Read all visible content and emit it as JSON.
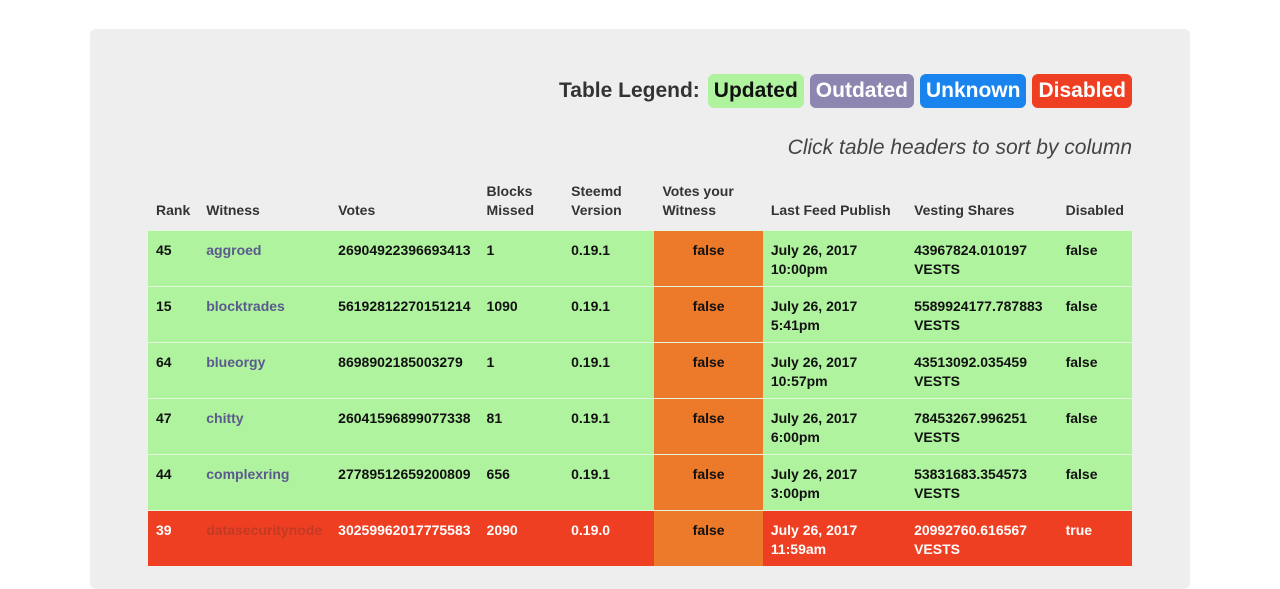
{
  "legend": {
    "title": "Table Legend:",
    "updated": "Updated",
    "outdated": "Outdated",
    "unknown": "Unknown",
    "disabled": "Disabled"
  },
  "hint": "Click table headers to sort by column",
  "headers": {
    "rank": "Rank",
    "witness": "Witness",
    "votes": "Votes",
    "blocks_missed_1": "Blocks",
    "blocks_missed_2": "Missed",
    "steemd_1": "Steemd",
    "steemd_2": "Version",
    "votes_witness_1": "Votes your",
    "votes_witness_2": "Witness",
    "last_feed": "Last Feed Publish",
    "vesting": "Vesting Shares",
    "disabled": "Disabled"
  },
  "rows": [
    {
      "status": "updated",
      "rank": "45",
      "witness": "aggroed",
      "votes": "26904922396693413",
      "missed": "1",
      "version": "0.19.1",
      "vote": "false",
      "feed_1": "July 26, 2017",
      "feed_2": "10:00pm",
      "vest_1": "43967824.010197",
      "vest_2": "VESTS",
      "disabled": "false"
    },
    {
      "status": "updated",
      "rank": "15",
      "witness": "blocktrades",
      "votes": "56192812270151214",
      "missed": "1090",
      "version": "0.19.1",
      "vote": "false",
      "feed_1": "July 26, 2017 5:41pm",
      "feed_2": "",
      "vest_1": "5589924177.787883",
      "vest_2": "VESTS",
      "disabled": "false"
    },
    {
      "status": "updated",
      "rank": "64",
      "witness": "blueorgy",
      "votes": "8698902185003279",
      "missed": "1",
      "version": "0.19.1",
      "vote": "false",
      "feed_1": "July 26, 2017",
      "feed_2": "10:57pm",
      "vest_1": "43513092.035459",
      "vest_2": "VESTS",
      "disabled": "false"
    },
    {
      "status": "updated",
      "rank": "47",
      "witness": "chitty",
      "votes": "26041596899077338",
      "missed": "81",
      "version": "0.19.1",
      "vote": "false",
      "feed_1": "July 26, 2017 6:00pm",
      "feed_2": "",
      "vest_1": "78453267.996251",
      "vest_2": "VESTS",
      "disabled": "false"
    },
    {
      "status": "updated",
      "rank": "44",
      "witness": "complexring",
      "votes": "27789512659200809",
      "missed": "656",
      "version": "0.19.1",
      "vote": "false",
      "feed_1": "July 26, 2017 3:00pm",
      "feed_2": "",
      "vest_1": "53831683.354573",
      "vest_2": "VESTS",
      "disabled": "false"
    },
    {
      "status": "disabled",
      "rank": "39",
      "witness": "datasecuritynode",
      "votes": "30259962017775583",
      "missed": "2090",
      "version": "0.19.0",
      "vote": "false",
      "feed_1": "July 26, 2017",
      "feed_2": "11:59am",
      "vest_1": "20992760.616567",
      "vest_2": "VESTS",
      "disabled": "true"
    }
  ]
}
